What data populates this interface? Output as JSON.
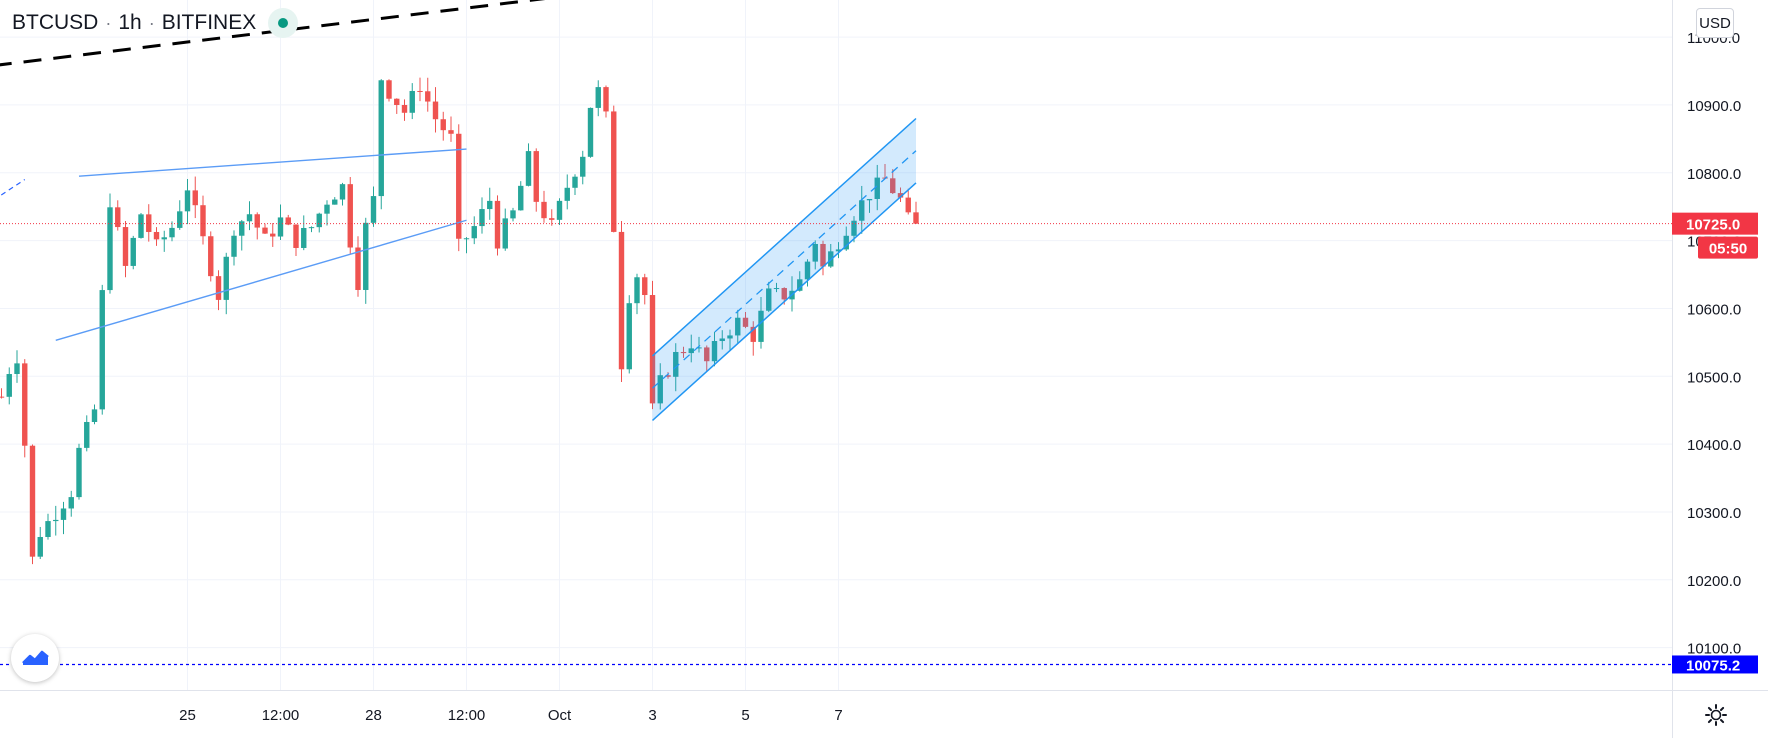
{
  "header": {
    "symbol": "BTCUSD",
    "interval": "1h",
    "exchange": "BITFINEX",
    "separator": "·"
  },
  "currency_button": "USD",
  "icons": {
    "logo": "tradingview-logo-icon",
    "settings": "gear-icon",
    "status": "market-open-dot-icon"
  },
  "colors": {
    "up": "#26a69a",
    "down": "#ef5350",
    "channel": "#2196f3",
    "last_price_badge": "#f23645",
    "low_badge": "#0000ff"
  },
  "chart_data": {
    "type": "candlestick",
    "x_ticks": [
      {
        "label": "25",
        "t": 24
      },
      {
        "label": "12:00",
        "t": 36
      },
      {
        "label": "28",
        "t": 48
      },
      {
        "label": "12:00",
        "t": 60
      },
      {
        "label": "Oct",
        "t": 72
      },
      {
        "label": "3",
        "t": 84
      },
      {
        "label": "5",
        "t": 96
      },
      {
        "label": "7",
        "t": 108
      }
    ],
    "y_ticks": [
      10100,
      10200,
      10300,
      10400,
      10500,
      10600,
      10700,
      10800,
      10900,
      11000
    ],
    "ylim": [
      10070,
      11080
    ],
    "y_tick_decimals": 1,
    "last_price": {
      "value": 10725.0,
      "label": "10725.0",
      "countdown": "05:50"
    },
    "low_line": {
      "value": 10075.2,
      "label": "10075.2"
    },
    "grid": true,
    "anchors": [
      {
        "t": 0,
        "p": 10470
      },
      {
        "t": 1,
        "p": 10510
      },
      {
        "t": 2,
        "p": 10530
      },
      {
        "t": 3,
        "p": 10400
      },
      {
        "t": 4,
        "p": 10230
      },
      {
        "t": 5,
        "p": 10270
      },
      {
        "t": 7,
        "p": 10300
      },
      {
        "t": 9,
        "p": 10330
      },
      {
        "t": 10,
        "p": 10390
      },
      {
        "t": 12,
        "p": 10450
      },
      {
        "t": 13,
        "p": 10620
      },
      {
        "t": 14,
        "p": 10760
      },
      {
        "t": 16,
        "p": 10660
      },
      {
        "t": 18,
        "p": 10740
      },
      {
        "t": 20,
        "p": 10690
      },
      {
        "t": 22,
        "p": 10720
      },
      {
        "t": 24,
        "p": 10780
      },
      {
        "t": 26,
        "p": 10700
      },
      {
        "t": 28,
        "p": 10620
      },
      {
        "t": 30,
        "p": 10720
      },
      {
        "t": 32,
        "p": 10740
      },
      {
        "t": 34,
        "p": 10700
      },
      {
        "t": 36,
        "p": 10730
      },
      {
        "t": 38,
        "p": 10700
      },
      {
        "t": 40,
        "p": 10720
      },
      {
        "t": 42,
        "p": 10760
      },
      {
        "t": 44,
        "p": 10780
      },
      {
        "t": 45,
        "p": 10700
      },
      {
        "t": 46,
        "p": 10640
      },
      {
        "t": 47,
        "p": 10720
      },
      {
        "t": 48,
        "p": 10760
      },
      {
        "t": 49,
        "p": 10940
      },
      {
        "t": 50,
        "p": 10920
      },
      {
        "t": 52,
        "p": 10890
      },
      {
        "t": 54,
        "p": 10930
      },
      {
        "t": 56,
        "p": 10880
      },
      {
        "t": 58,
        "p": 10850
      },
      {
        "t": 59,
        "p": 10690
      },
      {
        "t": 61,
        "p": 10720
      },
      {
        "t": 63,
        "p": 10760
      },
      {
        "t": 64,
        "p": 10700
      },
      {
        "t": 66,
        "p": 10740
      },
      {
        "t": 68,
        "p": 10820
      },
      {
        "t": 69,
        "p": 10760
      },
      {
        "t": 71,
        "p": 10720
      },
      {
        "t": 73,
        "p": 10780
      },
      {
        "t": 75,
        "p": 10830
      },
      {
        "t": 76,
        "p": 10900
      },
      {
        "t": 77,
        "p": 10920
      },
      {
        "t": 78,
        "p": 10880
      },
      {
        "t": 79,
        "p": 10720
      },
      {
        "t": 80,
        "p": 10520
      },
      {
        "t": 81,
        "p": 10620
      },
      {
        "t": 82,
        "p": 10650
      },
      {
        "t": 83,
        "p": 10620
      },
      {
        "t": 84,
        "p": 10450
      },
      {
        "t": 85,
        "p": 10490
      },
      {
        "t": 87,
        "p": 10530
      },
      {
        "t": 89,
        "p": 10550
      },
      {
        "t": 91,
        "p": 10520
      },
      {
        "t": 93,
        "p": 10560
      },
      {
        "t": 95,
        "p": 10580
      },
      {
        "t": 97,
        "p": 10560
      },
      {
        "t": 99,
        "p": 10620
      },
      {
        "t": 101,
        "p": 10620
      },
      {
        "t": 103,
        "p": 10640
      },
      {
        "t": 105,
        "p": 10700
      },
      {
        "t": 106,
        "p": 10660
      },
      {
        "t": 108,
        "p": 10700
      },
      {
        "t": 110,
        "p": 10740
      },
      {
        "t": 112,
        "p": 10770
      },
      {
        "t": 114,
        "p": 10790
      },
      {
        "t": 116,
        "p": 10760
      },
      {
        "t": 117,
        "p": 10730
      },
      {
        "t": 118,
        "p": 10725
      }
    ],
    "drawings": {
      "dashed_trendline": [
        {
          "t": -1,
          "p": 10958
        },
        {
          "t": 94,
          "p": 11090
        }
      ],
      "triangle_upper": [
        {
          "t": 10,
          "p": 10795
        },
        {
          "t": 60,
          "p": 10835
        }
      ],
      "triangle_lower": [
        {
          "t": 7,
          "p": 10553
        },
        {
          "t": 60,
          "p": 10730
        }
      ],
      "left_dashed_stub": [
        {
          "t": -1,
          "p": 10760
        },
        {
          "t": 3,
          "p": 10790
        }
      ],
      "channel_upper": [
        {
          "t": 84,
          "p": 10530
        },
        {
          "t": 118,
          "p": 10880
        }
      ],
      "channel_lower": [
        {
          "t": 84,
          "p": 10435
        },
        {
          "t": 118,
          "p": 10785
        }
      ]
    }
  }
}
